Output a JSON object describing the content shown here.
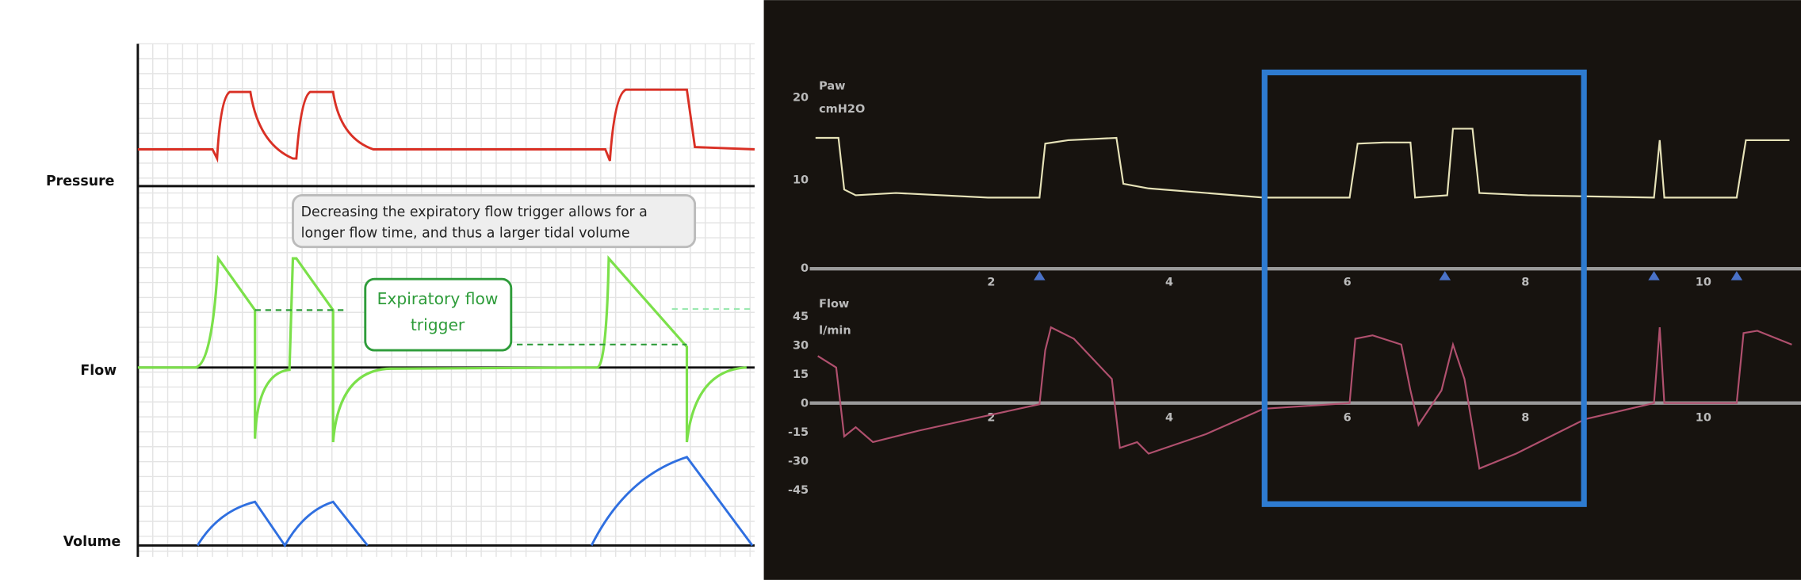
{
  "left_panel": {
    "labels": {
      "pressure": "Pressure",
      "flow": "Flow",
      "volume": "Volume"
    },
    "annotation": [
      "Decreasing the expiratory flow trigger allows for a",
      "longer flow time, and thus a larger tidal volume"
    ],
    "trigger_box": [
      "Expiratory flow",
      "trigger"
    ]
  },
  "right_panel": {
    "paw": {
      "name": "Paw",
      "unit": "cmH2O",
      "ticks": [
        "20",
        "10",
        "0"
      ]
    },
    "flow": {
      "name": "Flow",
      "unit": "l/min",
      "ticks": [
        "45",
        "30",
        "15",
        "0",
        "-15",
        "-30",
        "-45"
      ]
    },
    "time_ticks": [
      "2",
      "4",
      "6",
      "8",
      "10"
    ]
  }
}
